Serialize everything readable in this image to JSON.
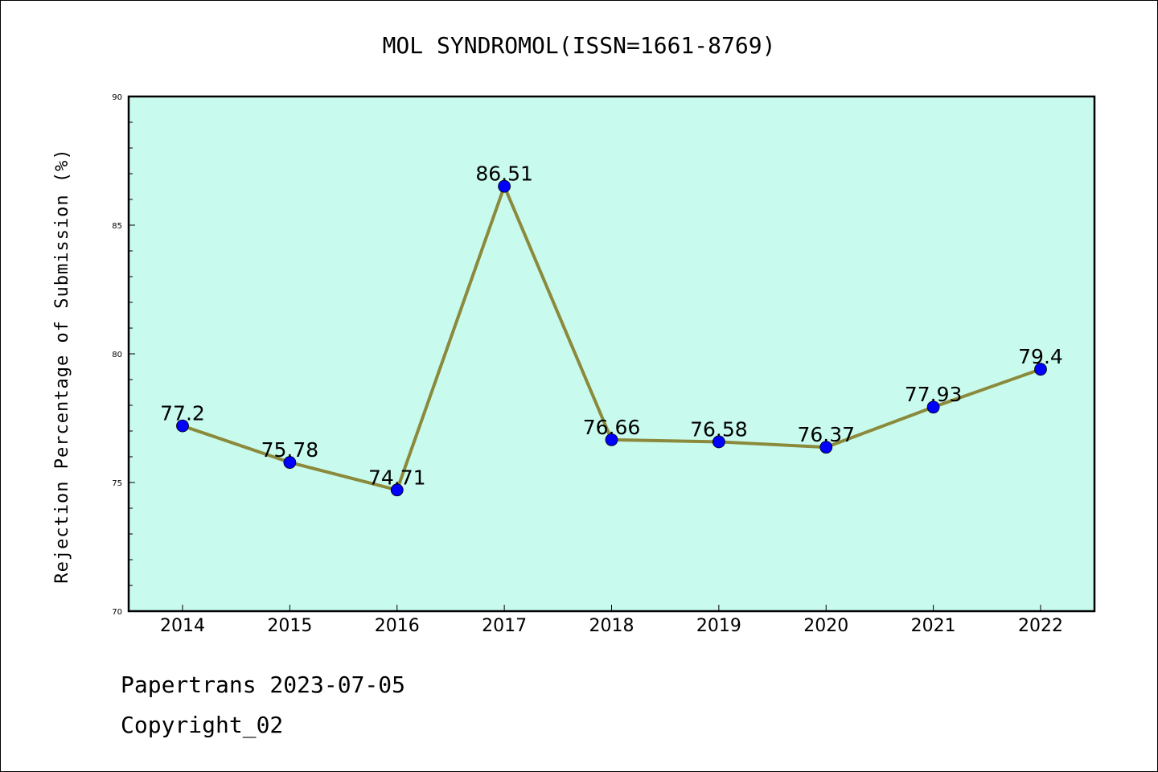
{
  "chart_data": {
    "type": "line",
    "title": "MOL SYNDROMOL(ISSN=1661-8769)",
    "xlabel": "",
    "ylabel": "Rejection Percentage of Submission (%)",
    "categories": [
      "2014",
      "2015",
      "2016",
      "2017",
      "2018",
      "2019",
      "2020",
      "2021",
      "2022"
    ],
    "values": [
      77.2,
      75.78,
      74.71,
      86.51,
      76.66,
      76.58,
      76.37,
      77.93,
      79.4
    ],
    "data_labels": [
      "77.2",
      "75.78",
      "74.71",
      "86.51",
      "76.66",
      "76.58",
      "76.37",
      "77.93",
      "79.4"
    ],
    "ylim": [
      70,
      90
    ],
    "yticks": [
      "70",
      "75",
      "80",
      "85",
      "90"
    ],
    "grid": false,
    "colors": {
      "plot_background": "#c8fbed",
      "line": "#8b8a3c",
      "marker": "#0000ff"
    }
  },
  "footer": {
    "line1": "Papertrans 2023-07-05",
    "line2": "Copyright_02"
  }
}
